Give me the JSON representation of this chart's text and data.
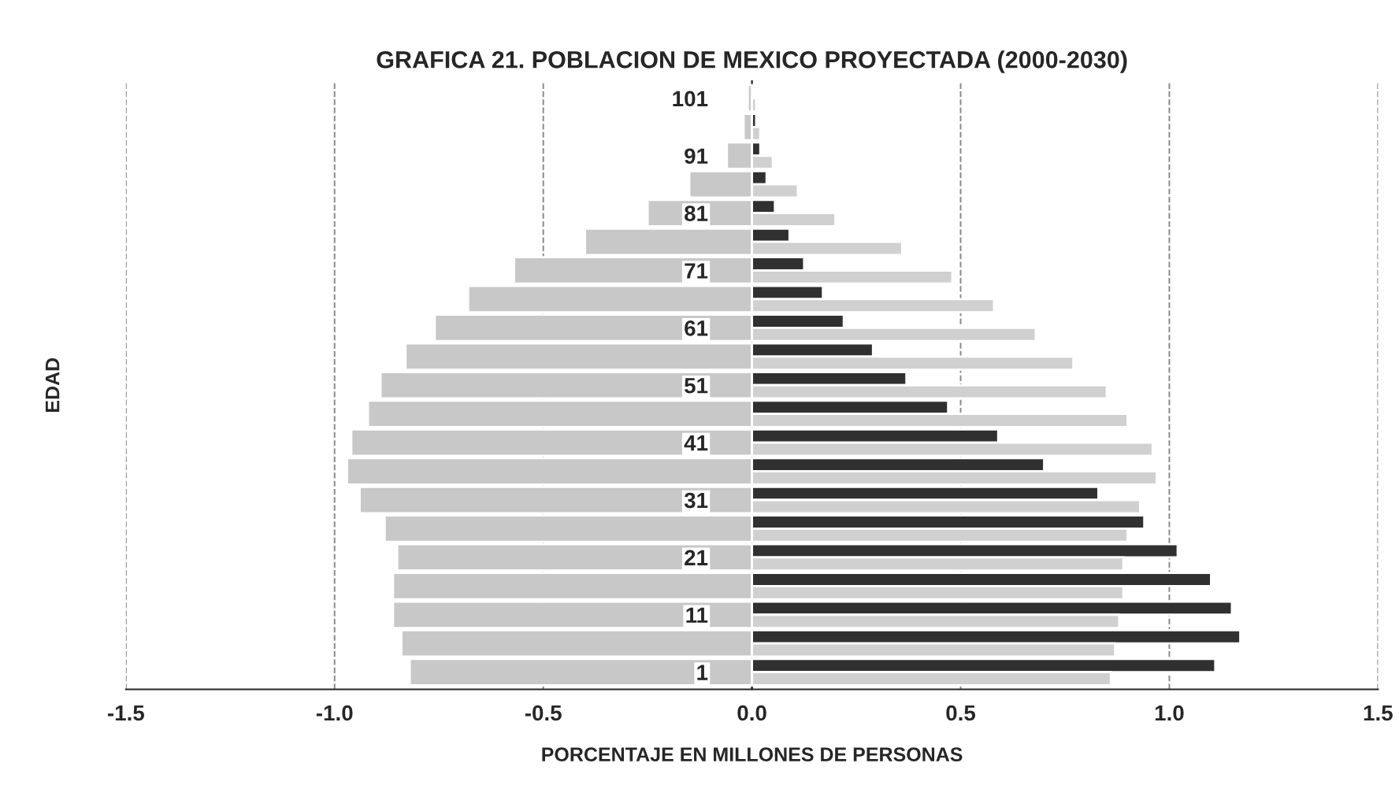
{
  "chart_data": {
    "type": "bar",
    "orientation": "horizontal",
    "title": "GRAFICA 21. POBLACION DE MEXICO PROYECTADA (2000-2030)",
    "xlabel": "PORCENTAJE EN MILLONES DE PERSONAS",
    "ylabel": "EDAD",
    "categories": [
      "101",
      null,
      "91",
      null,
      "81",
      null,
      "71",
      null,
      "61",
      null,
      "51",
      null,
      "41",
      null,
      "31",
      null,
      "21",
      null,
      "11",
      null,
      "1"
    ],
    "series": [
      {
        "color": "#c8c8c8",
        "values": [
          -0.01,
          -0.02,
          -0.06,
          -0.15,
          -0.25,
          -0.4,
          -0.57,
          -0.68,
          -0.76,
          -0.83,
          -0.89,
          -0.92,
          -0.96,
          -0.97,
          -0.94,
          -0.88,
          -0.85,
          -0.86,
          -0.86,
          -0.84,
          -0.82
        ]
      },
      {
        "color": "#303030",
        "values": [
          null,
          0.01,
          0.02,
          0.035,
          0.055,
          0.09,
          0.125,
          0.17,
          0.22,
          0.29,
          0.37,
          0.47,
          0.59,
          0.7,
          0.83,
          0.94,
          1.02,
          1.1,
          1.15,
          1.17,
          1.11
        ]
      },
      {
        "color": "#d0d0d0",
        "values": [
          0.01,
          0.02,
          0.05,
          0.11,
          0.2,
          0.36,
          0.48,
          0.58,
          0.68,
          0.77,
          0.85,
          0.9,
          0.96,
          0.97,
          0.93,
          0.9,
          0.89,
          0.89,
          0.88,
          0.87,
          0.86
        ]
      }
    ],
    "xlim": [
      -1.5,
      1.5
    ],
    "xticks": [
      {
        "value": -1.5,
        "label": "-1.5"
      },
      {
        "value": -1.0,
        "label": "-1.0"
      },
      {
        "value": -0.5,
        "label": "-0.5"
      },
      {
        "value": 0.0,
        "label": "0.0"
      },
      {
        "value": 0.5,
        "label": "0.5"
      },
      {
        "value": 1.0,
        "label": "1.0"
      },
      {
        "value": 1.5,
        "label": "1.5"
      }
    ],
    "grid": "x"
  }
}
